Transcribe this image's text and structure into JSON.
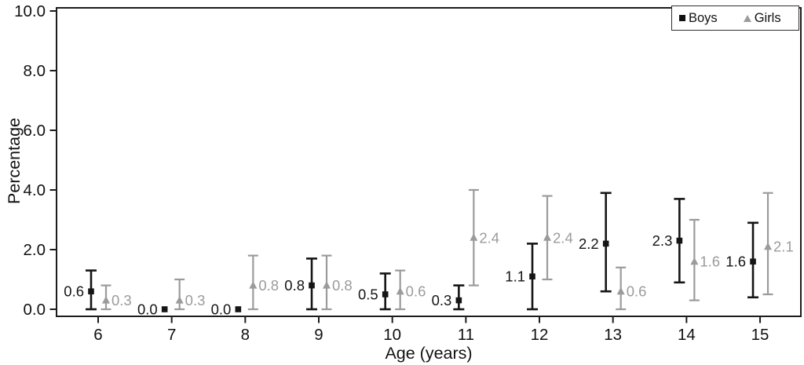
{
  "chart_data": {
    "type": "scatter",
    "title": "",
    "xlabel": "Age (years)",
    "ylabel": "Percentage",
    "x_ticks": [
      6,
      7,
      8,
      9,
      10,
      11,
      12,
      13,
      14,
      15
    ],
    "x_tick_labels": [
      "6",
      "7",
      "8",
      "9",
      "10",
      "11",
      "12",
      "13",
      "14",
      "15"
    ],
    "y_ticks": [
      0.0,
      2.0,
      4.0,
      6.0,
      8.0,
      10.0
    ],
    "y_tick_labels": [
      "0.0",
      "2.0",
      "4.0",
      "6.0",
      "8.0",
      "10.0"
    ],
    "ylim": [
      0,
      10
    ],
    "grid": false,
    "axis_color": "#1c1c1c",
    "legend": {
      "position": "top-right",
      "entries": [
        {
          "name": "Boys",
          "marker": "square",
          "color": "#111111"
        },
        {
          "name": "Girls",
          "marker": "triangle",
          "color": "#9b9b9b"
        }
      ]
    },
    "series": [
      {
        "name": "Boys",
        "marker": "square",
        "color": "#151515",
        "label_side": "left",
        "categories": [
          6,
          7,
          8,
          9,
          10,
          11,
          12,
          13,
          14,
          15
        ],
        "values": [
          0.6,
          0.0,
          0.0,
          0.8,
          0.5,
          0.3,
          1.1,
          2.2,
          2.3,
          1.6
        ],
        "value_labels": [
          "0.6",
          "0.0",
          "0.0",
          "0.8",
          "0.5",
          "0.3",
          "1.1",
          "2.2",
          "2.3",
          "1.6"
        ],
        "ci_low": [
          0.0,
          null,
          null,
          0.0,
          0.0,
          0.0,
          0.0,
          0.6,
          0.9,
          0.4
        ],
        "ci_high": [
          1.3,
          null,
          null,
          1.7,
          1.2,
          0.8,
          2.2,
          3.9,
          3.7,
          2.9
        ]
      },
      {
        "name": "Girls",
        "marker": "triangle",
        "color": "#9b9b9b",
        "label_side": "right",
        "categories": [
          6,
          7,
          8,
          9,
          10,
          11,
          12,
          13,
          14,
          15
        ],
        "values": [
          0.3,
          0.3,
          0.8,
          0.8,
          0.6,
          2.4,
          2.4,
          0.6,
          1.6,
          2.1
        ],
        "value_labels": [
          "0.3",
          "0.3",
          "0.8",
          "0.8",
          "0.6",
          "2.4",
          "2.4",
          "0.6",
          "1.6",
          "2.1"
        ],
        "ci_low": [
          0.0,
          0.0,
          0.0,
          0.0,
          0.0,
          0.8,
          1.0,
          0.0,
          0.3,
          0.5
        ],
        "ci_high": [
          0.8,
          1.0,
          1.8,
          1.8,
          1.3,
          4.0,
          3.8,
          1.4,
          3.0,
          3.9
        ]
      }
    ]
  }
}
